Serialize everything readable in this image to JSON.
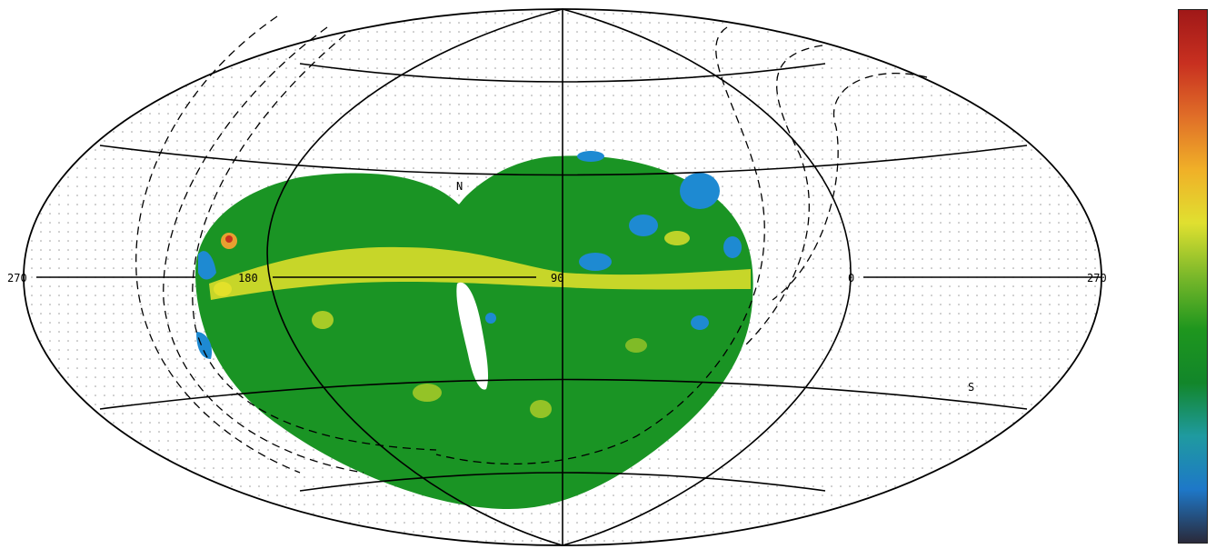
{
  "map": {
    "projection": "Hammer-Aitoff (all-sky)",
    "longitude_labels": {
      "left_edge": "270",
      "l180": "180",
      "l90": "90",
      "l0": "0",
      "right_edge": "270"
    },
    "pole_labels": {
      "north": "N",
      "south": "S"
    },
    "grid": true,
    "coverage_region_color": "#1a9424",
    "colors": {
      "low_blue": "#1e8ad2",
      "mid_green": "#1a9424",
      "enhanced_yellow": "#e6e22a",
      "peak_red": "#c8321e",
      "gap_white": "#ffffff",
      "frame": "#000000"
    }
  },
  "color_scale": {
    "stops": [
      "#2a2a3a",
      "#1e78c8",
      "#1f9aa0",
      "#12862a",
      "#1e961e",
      "#7ab82a",
      "#e0e030",
      "#f0b028",
      "#e06e28",
      "#c83020",
      "#a01818"
    ]
  }
}
